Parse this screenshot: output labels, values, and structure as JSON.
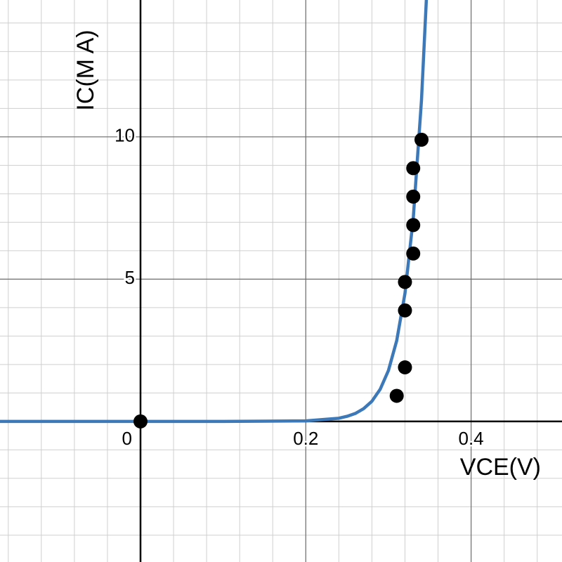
{
  "chart_data": {
    "type": "scatter-curve",
    "x_label": "VCE(V)",
    "y_label": "IC(M A)",
    "xlim": [
      -0.17,
      0.51
    ],
    "ylim": [
      -4.94,
      14.81
    ],
    "xticks": [
      0,
      0.2,
      0.4
    ],
    "yticks": [
      5,
      10
    ],
    "minor_grid": {
      "x": 0.04,
      "y": 1
    },
    "grid": true,
    "curve": {
      "color": "#3d79b8",
      "x": [
        -0.17,
        0,
        0.1,
        0.2,
        0.24,
        0.25,
        0.26,
        0.27,
        0.28,
        0.29,
        0.3,
        0.31,
        0.32,
        0.33,
        0.34,
        0.346,
        0.35
      ],
      "values": [
        0,
        0,
        0,
        0.018,
        0.113,
        0.18,
        0.28,
        0.45,
        0.71,
        1.13,
        1.79,
        2.84,
        4.5,
        7.13,
        11.3,
        14.9,
        17.9
      ]
    },
    "points": {
      "color": "#000000",
      "x": [
        0,
        0.31,
        0.32,
        0.32,
        0.32,
        0.33,
        0.33,
        0.33,
        0.33,
        0.34
      ],
      "values": [
        0,
        0.9,
        1.9,
        3.9,
        4.9,
        5.9,
        6.9,
        7.9,
        8.9,
        9.9
      ]
    }
  }
}
